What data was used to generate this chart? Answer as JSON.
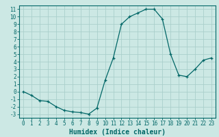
{
  "x": [
    0,
    1,
    2,
    3,
    4,
    5,
    6,
    7,
    8,
    9,
    10,
    11,
    12,
    13,
    14,
    15,
    16,
    17,
    18,
    19,
    20,
    21,
    22,
    23
  ],
  "y": [
    0,
    -0.5,
    -1.2,
    -1.3,
    -2.0,
    -2.5,
    -2.7,
    -2.8,
    -3.0,
    -2.2,
    1.5,
    4.5,
    9.0,
    10.0,
    10.5,
    11.0,
    11.0,
    9.7,
    5.0,
    2.2,
    2.0,
    3.0,
    4.2,
    4.5
  ],
  "xlabel": "Humidex (Indice chaleur)",
  "bg_color": "#cce8e4",
  "grid_color": "#aacfcb",
  "line_color": "#006666",
  "xlim": [
    -0.5,
    23.5
  ],
  "ylim": [
    -3.5,
    11.5
  ],
  "xticks": [
    0,
    1,
    2,
    3,
    4,
    5,
    6,
    7,
    8,
    9,
    10,
    11,
    12,
    13,
    14,
    15,
    16,
    17,
    18,
    19,
    20,
    21,
    22,
    23
  ],
  "yticks": [
    -3,
    -2,
    -1,
    0,
    1,
    2,
    3,
    4,
    5,
    6,
    7,
    8,
    9,
    10,
    11
  ],
  "xlabel_fontsize": 7,
  "tick_fontsize": 5.5
}
